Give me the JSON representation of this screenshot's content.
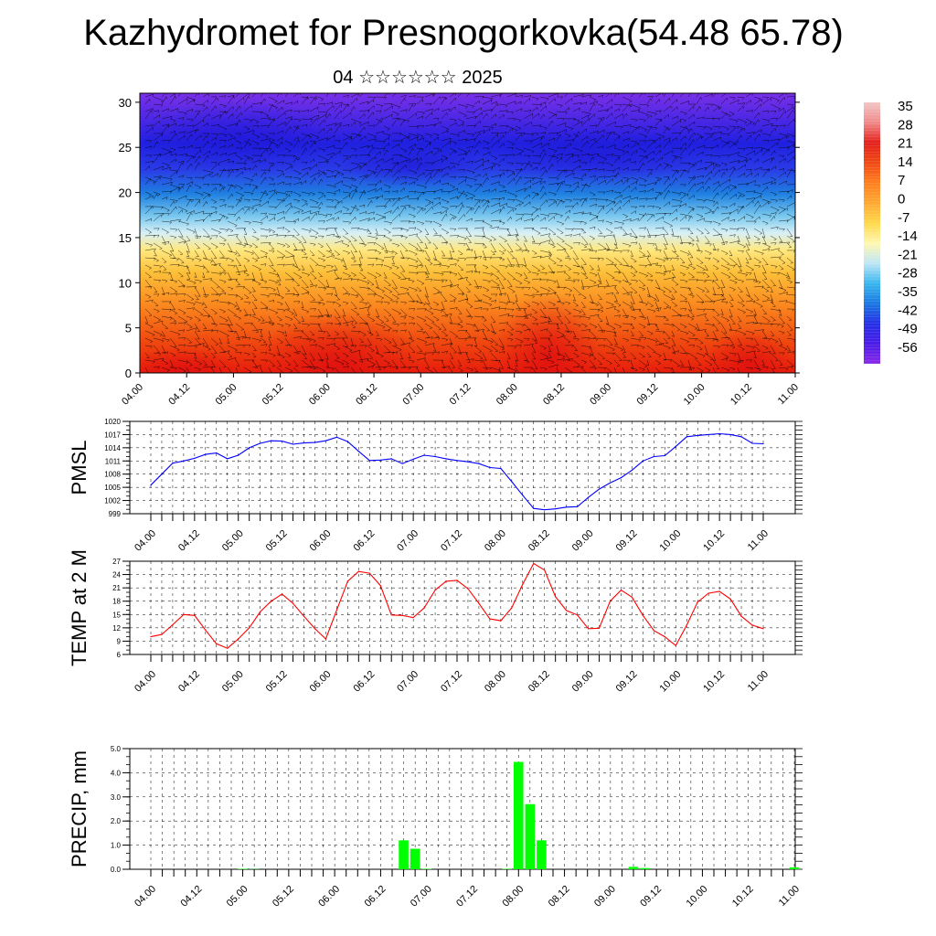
{
  "title": "Kazhydromet for Presnogorkovka(54.48 65.78)",
  "subtitle": "04 ☆☆☆☆☆☆ 2025",
  "time_labels": [
    "04.00",
    "04.12",
    "05.00",
    "05.12",
    "06.00",
    "06.12",
    "07.00",
    "07.12",
    "08.00",
    "08.12",
    "09.00",
    "09.12",
    "10.00",
    "10.12",
    "11.00"
  ],
  "colorbar": {
    "labels": [
      "35",
      "28",
      "21",
      "14",
      "7",
      "0",
      "-7",
      "-14",
      "-21",
      "-28",
      "-35",
      "-42",
      "-49",
      "-56"
    ],
    "colors": [
      "#f2c6c6",
      "#f08a8a",
      "#e4201c",
      "#f04a14",
      "#ff7e1e",
      "#ffa832",
      "#ffd84a",
      "#fff8b0",
      "#bfe6f6",
      "#39b6ee",
      "#1a78e0",
      "#2430e6",
      "#4a1ce8",
      "#8a2ae8"
    ]
  },
  "chart_data": [
    {
      "type": "heatmap",
      "title": "Kazhydromet for Presnogorkovka(54.48 65.78)",
      "subtitle": "04 ☆☆☆☆☆☆ 2025",
      "y_ticks": [
        0,
        5,
        10,
        15,
        20,
        25,
        30
      ],
      "ylim": [
        0,
        31
      ],
      "x_range": [
        "04.00",
        "11.00"
      ],
      "color_range": [
        -56,
        35
      ],
      "overlay": "wind barbs"
    },
    {
      "type": "line",
      "ylabel": "PMSL",
      "color": "#0000ff",
      "ylim": [
        999,
        1020
      ],
      "y_ticks": [
        999,
        1002,
        1005,
        1008,
        1011,
        1014,
        1017,
        1020
      ],
      "x_step_hours": 3,
      "values": [
        1005.5,
        1008.0,
        1010.5,
        1011.0,
        1011.6,
        1012.5,
        1012.8,
        1011.5,
        1012.3,
        1014.0,
        1015.0,
        1015.6,
        1015.5,
        1014.8,
        1015.1,
        1015.2,
        1015.6,
        1016.4,
        1015.4,
        1013.2,
        1011.1,
        1011.2,
        1011.5,
        1010.4,
        1011.4,
        1012.3,
        1012.0,
        1011.5,
        1011.1,
        1010.8,
        1010.4,
        1009.5,
        1009.3,
        1006.3,
        1003.2,
        1000.2,
        999.9,
        1000.1,
        1000.5,
        1000.6,
        1002.7,
        1004.6,
        1006.0,
        1007.2,
        1008.9,
        1011.0,
        1012.0,
        1012.2,
        1014.3,
        1016.5,
        1016.8,
        1017.0,
        1017.2,
        1017.0,
        1016.5,
        1015.0,
        1014.9
      ]
    },
    {
      "type": "line",
      "ylabel": "TEMP at 2 M",
      "color": "#ff0000",
      "ylim": [
        6,
        27
      ],
      "y_ticks": [
        6,
        9,
        12,
        15,
        18,
        21,
        24,
        27
      ],
      "x_step_hours": 3,
      "values": [
        10.0,
        10.5,
        12.7,
        15.0,
        14.8,
        11.5,
        8.4,
        7.4,
        9.5,
        12.0,
        15.6,
        18.0,
        19.6,
        17.5,
        14.6,
        11.8,
        9.5,
        16.0,
        22.5,
        24.7,
        24.3,
        21.5,
        14.9,
        14.8,
        14.3,
        16.5,
        20.5,
        22.5,
        22.7,
        20.8,
        17.5,
        14.0,
        13.6,
        16.5,
        21.8,
        26.5,
        25.0,
        19.0,
        15.9,
        14.9,
        11.8,
        11.9,
        18.0,
        20.5,
        18.9,
        14.8,
        11.4,
        10.0,
        8.0,
        12.6,
        17.8,
        19.8,
        20.2,
        18.5,
        14.6,
        12.6,
        11.8
      ]
    },
    {
      "type": "bar",
      "ylabel": "PRECIP, mm",
      "color": "#00ff00",
      "ylim": [
        0,
        5
      ],
      "y_ticks": [
        "0.0",
        "1.0",
        "2.0",
        "3.0",
        "4.0",
        "5.0"
      ],
      "x_step_hours": 3,
      "values": [
        0,
        0,
        0,
        0,
        0,
        0,
        0,
        0,
        0.02,
        0.01,
        0,
        0,
        0,
        0,
        0,
        0,
        0,
        0,
        0,
        0,
        0,
        0,
        1.2,
        0.85,
        0.02,
        0,
        0,
        0,
        0,
        0,
        0,
        0.02,
        4.45,
        2.7,
        1.2,
        0,
        0,
        0,
        0,
        0,
        0,
        0,
        0.1,
        0.05,
        0,
        0,
        0,
        0,
        0,
        0,
        0,
        0,
        0,
        0,
        0,
        0,
        0.08
      ]
    }
  ]
}
